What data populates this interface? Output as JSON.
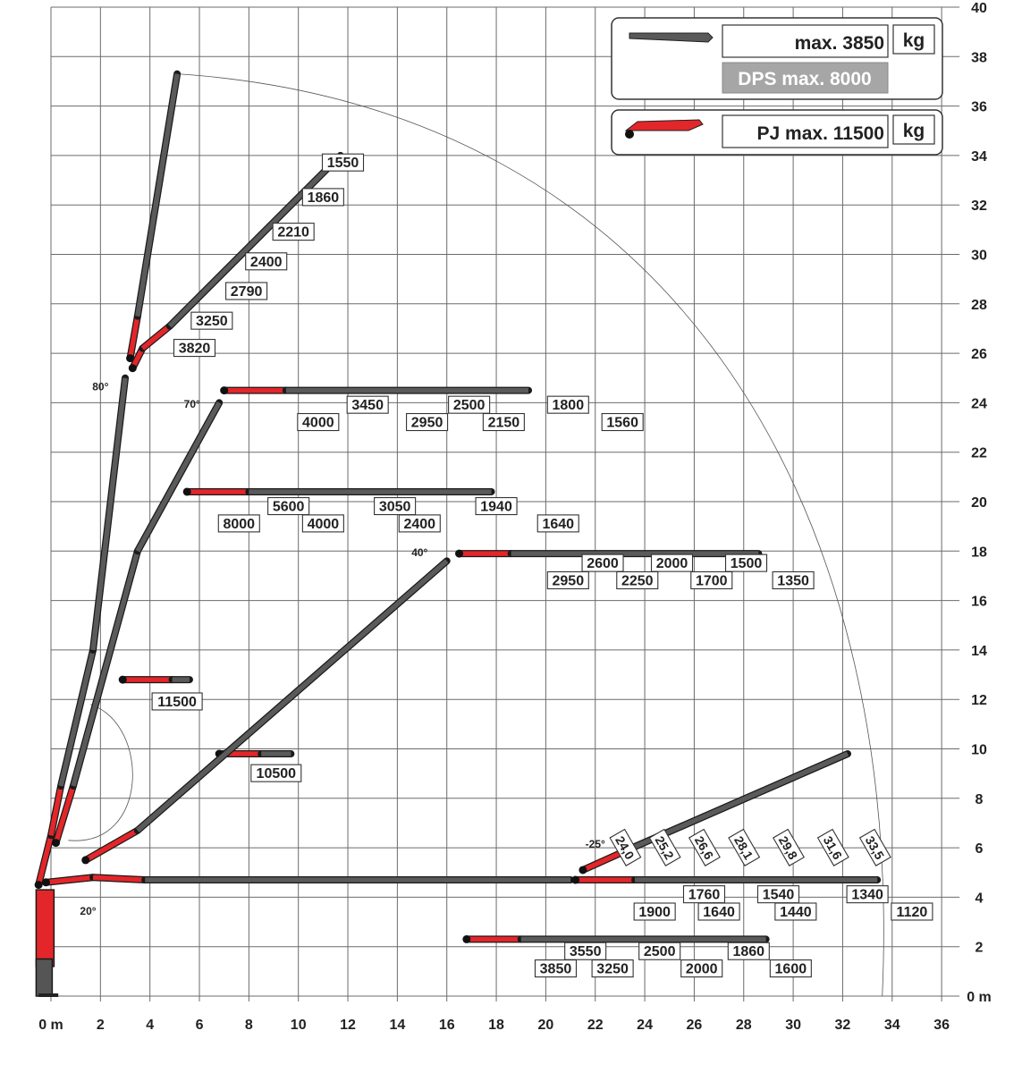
{
  "chart_data": {
    "type": "diagram",
    "x_axis": {
      "range": [
        0,
        36
      ],
      "ticks": [
        "0 m",
        "2",
        "4",
        "6",
        "8",
        "10",
        "12",
        "14",
        "16",
        "18",
        "20",
        "22",
        "24",
        "26",
        "28",
        "30",
        "32",
        "34",
        "36"
      ]
    },
    "y_axis": {
      "range": [
        0,
        40
      ],
      "ticks": [
        "0 m",
        "2",
        "4",
        "6",
        "8",
        "10",
        "12",
        "14",
        "16",
        "18",
        "20",
        "22",
        "24",
        "26",
        "28",
        "30",
        "32",
        "34",
        "36",
        "38",
        "40"
      ]
    },
    "grid": true,
    "angle_labels": [
      "80°",
      "70°",
      "40°",
      "20°",
      "-25°"
    ],
    "legend": {
      "main": {
        "label": "max. 3850",
        "unit": "kg"
      },
      "dps": {
        "label": "DPS max. 8000"
      },
      "pj": {
        "label": "PJ max. 11500",
        "unit": "kg"
      }
    },
    "load_labels": [
      {
        "text": "1550",
        "x": 11.8,
        "y": 33.7
      },
      {
        "text": "1860",
        "x": 11.0,
        "y": 32.3
      },
      {
        "text": "2210",
        "x": 9.8,
        "y": 30.9
      },
      {
        "text": "2400",
        "x": 8.7,
        "y": 29.7
      },
      {
        "text": "2790",
        "x": 7.9,
        "y": 28.5
      },
      {
        "text": "3250",
        "x": 6.5,
        "y": 27.3
      },
      {
        "text": "3820",
        "x": 5.8,
        "y": 26.2
      },
      {
        "text": "3450",
        "x": 12.8,
        "y": 23.9
      },
      {
        "text": "2500",
        "x": 16.9,
        "y": 23.9
      },
      {
        "text": "1800",
        "x": 20.9,
        "y": 23.9
      },
      {
        "text": "4000",
        "x": 10.8,
        "y": 23.2
      },
      {
        "text": "2950",
        "x": 15.2,
        "y": 23.2
      },
      {
        "text": "2150",
        "x": 18.3,
        "y": 23.2
      },
      {
        "text": "1560",
        "x": 23.1,
        "y": 23.2
      },
      {
        "text": "5600",
        "x": 9.6,
        "y": 19.8
      },
      {
        "text": "3050",
        "x": 13.9,
        "y": 19.8
      },
      {
        "text": "1940",
        "x": 18.0,
        "y": 19.8
      },
      {
        "text": "8000",
        "x": 7.6,
        "y": 19.1
      },
      {
        "text": "4000",
        "x": 11.0,
        "y": 19.1
      },
      {
        "text": "2400",
        "x": 14.9,
        "y": 19.1
      },
      {
        "text": "1640",
        "x": 20.5,
        "y": 19.1
      },
      {
        "text": "2600",
        "x": 22.3,
        "y": 17.5
      },
      {
        "text": "2000",
        "x": 25.1,
        "y": 17.5
      },
      {
        "text": "1500",
        "x": 28.1,
        "y": 17.5
      },
      {
        "text": "2950",
        "x": 20.9,
        "y": 16.8
      },
      {
        "text": "2250",
        "x": 23.7,
        "y": 16.8
      },
      {
        "text": "1700",
        "x": 26.7,
        "y": 16.8
      },
      {
        "text": "1350",
        "x": 30.0,
        "y": 16.8
      },
      {
        "text": "11500",
        "x": 5.1,
        "y": 11.9
      },
      {
        "text": "10500",
        "x": 9.1,
        "y": 9.0
      },
      {
        "text": "1760",
        "x": 26.4,
        "y": 4.1
      },
      {
        "text": "1540",
        "x": 29.4,
        "y": 4.1
      },
      {
        "text": "1340",
        "x": 33.0,
        "y": 4.1
      },
      {
        "text": "1900",
        "x": 24.4,
        "y": 3.4
      },
      {
        "text": "1640",
        "x": 27.0,
        "y": 3.4
      },
      {
        "text": "1440",
        "x": 30.1,
        "y": 3.4
      },
      {
        "text": "1120",
        "x": 34.8,
        "y": 3.4
      },
      {
        "text": "3550",
        "x": 21.6,
        "y": 1.8
      },
      {
        "text": "2500",
        "x": 24.6,
        "y": 1.8
      },
      {
        "text": "1860",
        "x": 28.2,
        "y": 1.8
      },
      {
        "text": "3850",
        "x": 20.4,
        "y": 1.1
      },
      {
        "text": "3250",
        "x": 22.7,
        "y": 1.1
      },
      {
        "text": "2000",
        "x": 26.3,
        "y": 1.1
      },
      {
        "text": "1600",
        "x": 29.9,
        "y": 1.1
      }
    ],
    "reach_labels": [
      "24,0",
      "25,2",
      "26,6",
      "28,1",
      "29,8",
      "31,6",
      "33,5"
    ]
  }
}
